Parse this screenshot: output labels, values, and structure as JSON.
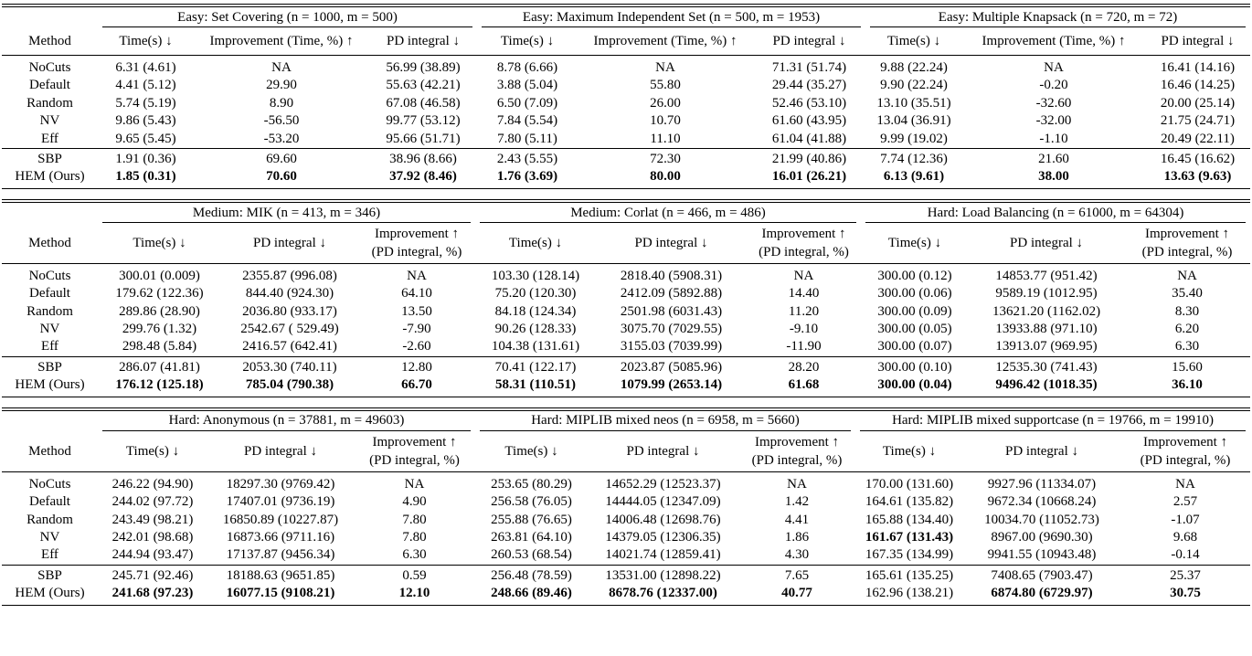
{
  "tables": [
    {
      "method_header": "Method",
      "groups": [
        {
          "title": "Easy: Set Covering (n = 1000,  m = 500)",
          "columns": [
            [
              "Time(s) ↓"
            ],
            [
              "Improvement (Time, %) ↑"
            ],
            [
              "PD integral ↓"
            ]
          ]
        },
        {
          "title": "Easy: Maximum Independent Set (n = 500,  m = 1953)",
          "columns": [
            [
              "Time(s) ↓"
            ],
            [
              "Improvement (Time, %) ↑"
            ],
            [
              "PD integral ↓"
            ]
          ]
        },
        {
          "title": "Easy: Multiple Knapsack (n = 720,  m = 72)",
          "columns": [
            [
              "Time(s) ↓"
            ],
            [
              "Improvement (Time, %) ↑"
            ],
            [
              "PD integral ↓"
            ]
          ]
        }
      ],
      "rows": [
        {
          "method": "NoCuts",
          "cells": [
            "6.31 (4.61)",
            "NA",
            "56.99 (38.89)",
            "8.78 (6.66)",
            "NA",
            "71.31 (51.74)",
            "9.88 (22.24)",
            "NA",
            "16.41 (14.16)"
          ]
        },
        {
          "method": "Default",
          "cells": [
            "4.41 (5.12)",
            "29.90",
            "55.63 (42.21)",
            "3.88 (5.04)",
            "55.80",
            "29.44 (35.27)",
            "9.90 (22.24)",
            "-0.20",
            "16.46 (14.25)"
          ]
        },
        {
          "method": "Random",
          "cells": [
            "5.74 (5.19)",
            "8.90",
            "67.08 (46.58)",
            "6.50 (7.09)",
            "26.00",
            "52.46 (53.10)",
            "13.10 (35.51)",
            "-32.60",
            "20.00 (25.14)"
          ]
        },
        {
          "method": "NV",
          "cells": [
            "9.86 (5.43)",
            "-56.50",
            "99.77 (53.12)",
            "7.84 (5.54)",
            "10.70",
            "61.60 (43.95)",
            "13.04 (36.91)",
            "-32.00",
            "21.75 (24.71)"
          ]
        },
        {
          "method": "Eff",
          "cells": [
            "9.65 (5.45)",
            "-53.20",
            "95.66 (51.71)",
            "7.80 (5.11)",
            "11.10",
            "61.04 (41.88)",
            "9.99 (19.02)",
            "-1.10",
            "20.49 (22.11)"
          ]
        },
        {
          "method": "SBP",
          "cells": [
            "1.91 (0.36)",
            "69.60",
            "38.96 (8.66)",
            "2.43 (5.55)",
            "72.30",
            "21.99 (40.86)",
            "7.74 (12.36)",
            "21.60",
            "16.45 (16.62)"
          ]
        },
        {
          "method": "HEM (Ours)",
          "cells": [
            "1.85 (0.31)",
            "70.60",
            "37.92 (8.46)",
            "1.76 (3.69)",
            "80.00",
            "16.01 (26.21)",
            "6.13 (9.61)",
            "38.00",
            "13.63 (9.63)"
          ],
          "bold": [
            0,
            1,
            2,
            3,
            4,
            5,
            6,
            7,
            8
          ]
        }
      ]
    },
    {
      "method_header": "Method",
      "groups": [
        {
          "title": "Medium: MIK (n = 413,  m = 346)",
          "columns": [
            [
              "Time(s) ↓"
            ],
            [
              "PD integral ↓"
            ],
            [
              "Improvement ↑",
              "(PD integral, %)"
            ]
          ]
        },
        {
          "title": "Medium: Corlat (n = 466,  m = 486)",
          "columns": [
            [
              "Time(s) ↓"
            ],
            [
              "PD integral ↓"
            ],
            [
              "Improvement ↑",
              "(PD integral, %)"
            ]
          ]
        },
        {
          "title": "Hard: Load Balancing (n = 61000,  m = 64304)",
          "columns": [
            [
              "Time(s) ↓"
            ],
            [
              "PD integral ↓"
            ],
            [
              "Improvement ↑",
              "(PD integral, %)"
            ]
          ]
        }
      ],
      "rows": [
        {
          "method": "NoCuts",
          "cells": [
            "300.01 (0.009)",
            "2355.87 (996.08)",
            "NA",
            "103.30 (128.14)",
            "2818.40 (5908.31)",
            "NA",
            "300.00 (0.12)",
            "14853.77 (951.42)",
            "NA"
          ]
        },
        {
          "method": "Default",
          "cells": [
            "179.62 (122.36)",
            "844.40 (924.30)",
            "64.10",
            "75.20 (120.30)",
            "2412.09 (5892.88)",
            "14.40",
            "300.00 (0.06)",
            "9589.19 (1012.95)",
            "35.40"
          ]
        },
        {
          "method": "Random",
          "cells": [
            "289.86 (28.90)",
            "2036.80 (933.17)",
            "13.50",
            "84.18 (124.34)",
            "2501.98 (6031.43)",
            "11.20",
            "300.00 (0.09)",
            "13621.20 (1162.02)",
            "8.30"
          ]
        },
        {
          "method": "NV",
          "cells": [
            "299.76 (1.32)",
            "2542.67 ( 529.49)",
            "-7.90",
            "90.26 (128.33)",
            "3075.70 (7029.55)",
            "-9.10",
            "300.00 (0.05)",
            "13933.88 (971.10)",
            "6.20"
          ]
        },
        {
          "method": "Eff",
          "cells": [
            "298.48 (5.84)",
            "2416.57 (642.41)",
            "-2.60",
            "104.38 (131.61)",
            "3155.03 (7039.99)",
            "-11.90",
            "300.00 (0.07)",
            "13913.07 (969.95)",
            "6.30"
          ]
        },
        {
          "method": "SBP",
          "cells": [
            "286.07 (41.81)",
            "2053.30 (740.11)",
            "12.80",
            "70.41 (122.17)",
            "2023.87 (5085.96)",
            "28.20",
            "300.00 (0.10)",
            "12535.30 (741.43)",
            "15.60"
          ]
        },
        {
          "method": "HEM (Ours)",
          "cells": [
            "176.12 (125.18)",
            "785.04 (790.38)",
            "66.70",
            "58.31 (110.51)",
            "1079.99 (2653.14)",
            "61.68",
            "300.00 (0.04)",
            "9496.42 (1018.35)",
            "36.10"
          ],
          "bold": [
            0,
            1,
            2,
            3,
            4,
            5,
            6,
            7,
            8
          ]
        }
      ]
    },
    {
      "method_header": "Method",
      "groups": [
        {
          "title": "Hard: Anonymous (n = 37881,  m = 49603)",
          "columns": [
            [
              "Time(s) ↓"
            ],
            [
              "PD integral ↓"
            ],
            [
              "Improvement ↑",
              "(PD integral, %)"
            ]
          ]
        },
        {
          "title": "Hard: MIPLIB mixed neos (n = 6958,  m = 5660)",
          "columns": [
            [
              "Time(s) ↓"
            ],
            [
              "PD integral ↓"
            ],
            [
              "Improvement ↑",
              "(PD integral, %)"
            ]
          ]
        },
        {
          "title": "Hard: MIPLIB mixed supportcase (n = 19766,  m = 19910)",
          "columns": [
            [
              "Time(s) ↓"
            ],
            [
              "PD integral ↓"
            ],
            [
              "Improvement ↑",
              "(PD integral, %)"
            ]
          ]
        }
      ],
      "rows": [
        {
          "method": "NoCuts",
          "cells": [
            "246.22 (94.90)",
            "18297.30 (9769.42)",
            "NA",
            "253.65 (80.29)",
            "14652.29 (12523.37)",
            "NA",
            "170.00 (131.60)",
            "9927.96 (11334.07)",
            "NA"
          ]
        },
        {
          "method": "Default",
          "cells": [
            "244.02 (97.72)",
            "17407.01 (9736.19)",
            "4.90",
            "256.58 (76.05)",
            "14444.05 (12347.09)",
            "1.42",
            "164.61 (135.82)",
            "9672.34 (10668.24)",
            "2.57"
          ]
        },
        {
          "method": "Random",
          "cells": [
            "243.49 (98.21)",
            "16850.89 (10227.87)",
            "7.80",
            "255.88 (76.65)",
            "14006.48 (12698.76)",
            "4.41",
            "165.88 (134.40)",
            "10034.70 (11052.73)",
            "-1.07"
          ]
        },
        {
          "method": "NV",
          "cells": [
            "242.01 (98.68)",
            "16873.66 (9711.16)",
            "7.80",
            "263.81 (64.10)",
            "14379.05 (12306.35)",
            "1.86",
            "161.67 (131.43)",
            "8967.00 (9690.30)",
            "9.68"
          ],
          "bold": [
            6
          ]
        },
        {
          "method": "Eff",
          "cells": [
            "244.94 (93.47)",
            "17137.87 (9456.34)",
            "6.30",
            "260.53 (68.54)",
            "14021.74 (12859.41)",
            "4.30",
            "167.35 (134.99)",
            "9941.55 (10943.48)",
            "-0.14"
          ]
        },
        {
          "method": "SBP",
          "cells": [
            "245.71 (92.46)",
            "18188.63 (9651.85)",
            "0.59",
            "256.48 (78.59)",
            "13531.00 (12898.22)",
            "7.65",
            "165.61 (135.25)",
            "7408.65 (7903.47)",
            "25.37"
          ]
        },
        {
          "method": "HEM (Ours)",
          "cells": [
            "241.68 (97.23)",
            "16077.15 (9108.21)",
            "12.10",
            "248.66 (89.46)",
            "8678.76 (12337.00)",
            "40.77",
            "162.96 (138.21)",
            "6874.80 (6729.97)",
            "30.75"
          ],
          "bold": [
            0,
            1,
            2,
            3,
            4,
            5,
            7,
            8
          ]
        }
      ]
    }
  ]
}
